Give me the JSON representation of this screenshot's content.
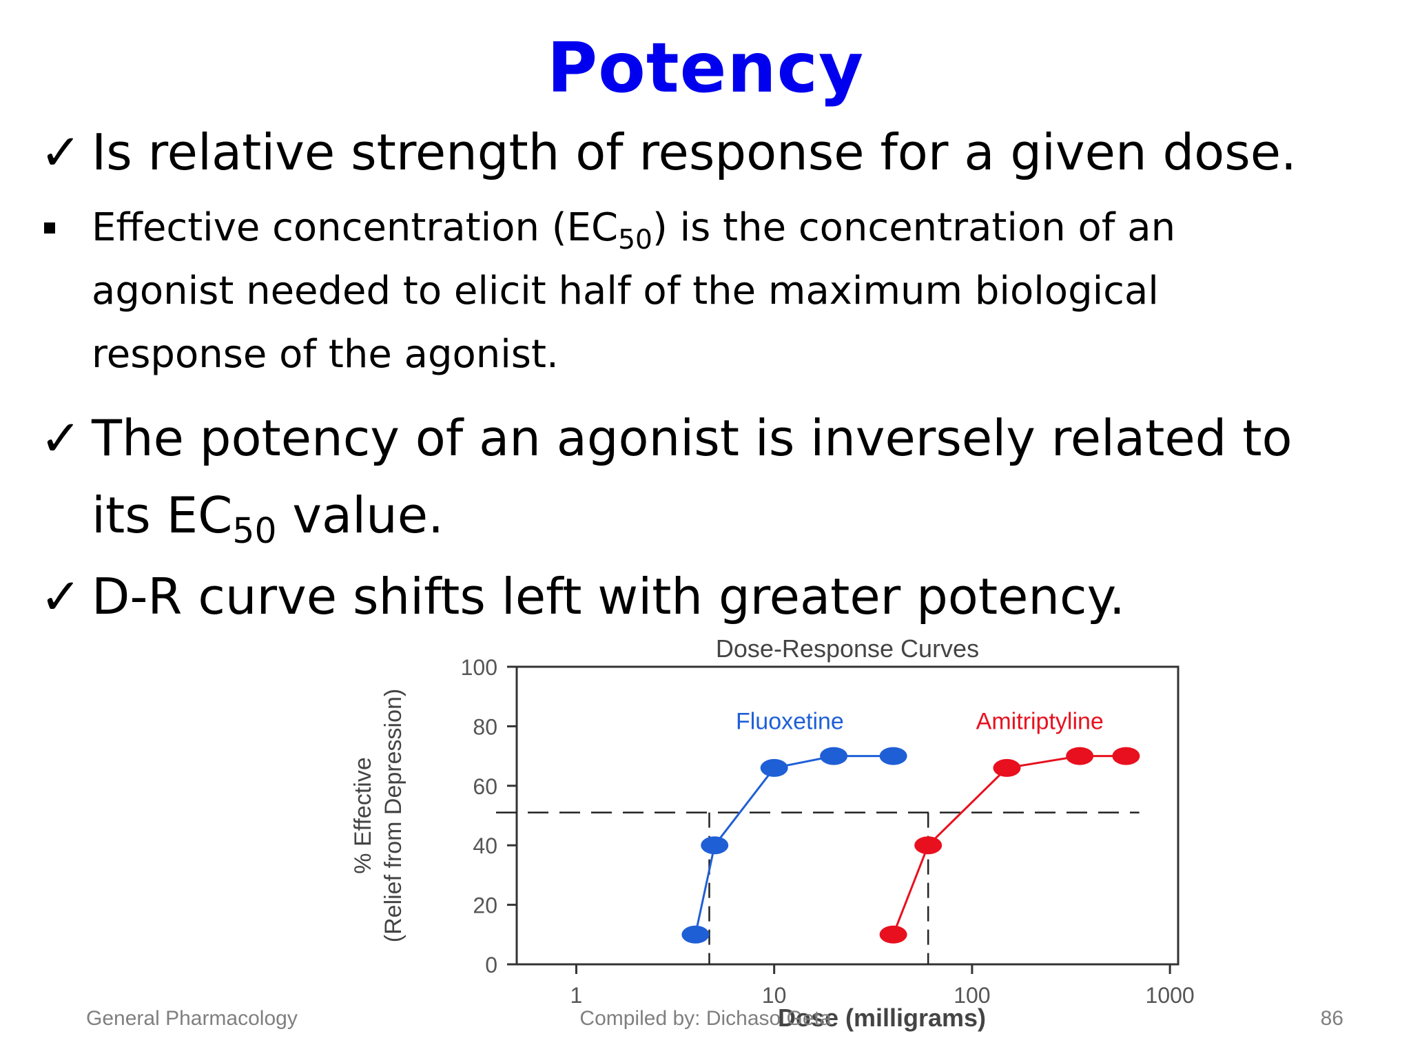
{
  "slide": {
    "title": "Potency",
    "bullets": [
      {
        "marker": "✓",
        "text": "Is relative strength of response for a given dose."
      },
      {
        "marker": "▪",
        "line1_pre": "Effective concentration (EC",
        "line1_sub": "50",
        "line1_post": ") is the concentration of an",
        "line2": "agonist needed to elicit half of the maximum biological",
        "line3": "response of the agonist."
      },
      {
        "marker": "✓",
        "line1": "The potency of an agonist is inversely related to",
        "line2_pre": "its EC",
        "line2_sub": "50",
        "line2_post": " value."
      },
      {
        "marker": "✓",
        "text": "D-R curve shifts left with greater potency."
      }
    ]
  },
  "chart_data": {
    "type": "line",
    "title": "Dose-Response Curves",
    "xlabel": "Dose (milligrams)",
    "ylabel_line1": "% Effective",
    "ylabel_line2": "(Relief from Depression)",
    "xscale": "log",
    "xlim": [
      0.5,
      1100
    ],
    "ylim": [
      0,
      100
    ],
    "x_ticks": [
      1,
      10,
      100,
      1000
    ],
    "x_tick_labels": [
      "1",
      "10",
      "100",
      "1000"
    ],
    "y_ticks": [
      0,
      20,
      40,
      60,
      80,
      100
    ],
    "y_tick_labels": [
      "0",
      "20",
      "40",
      "60",
      "80",
      "100"
    ],
    "reference_y": 51,
    "series": [
      {
        "name": "Fluoxetine",
        "color": "#1f5fd6",
        "x": [
          4,
          5,
          10,
          20,
          40
        ],
        "y": [
          10,
          40,
          66,
          70,
          70
        ],
        "ec50": 4.7
      },
      {
        "name": "Amitriptyline",
        "color": "#e8101e",
        "x": [
          40,
          60,
          150,
          350,
          600
        ],
        "y": [
          10,
          40,
          66,
          70,
          70
        ],
        "ec50": 60
      }
    ],
    "grid": false,
    "legend": "inline labels"
  },
  "footer": {
    "left": "General Pharmacology",
    "center": "Compiled by: Dichaso Geta",
    "right": "86"
  }
}
